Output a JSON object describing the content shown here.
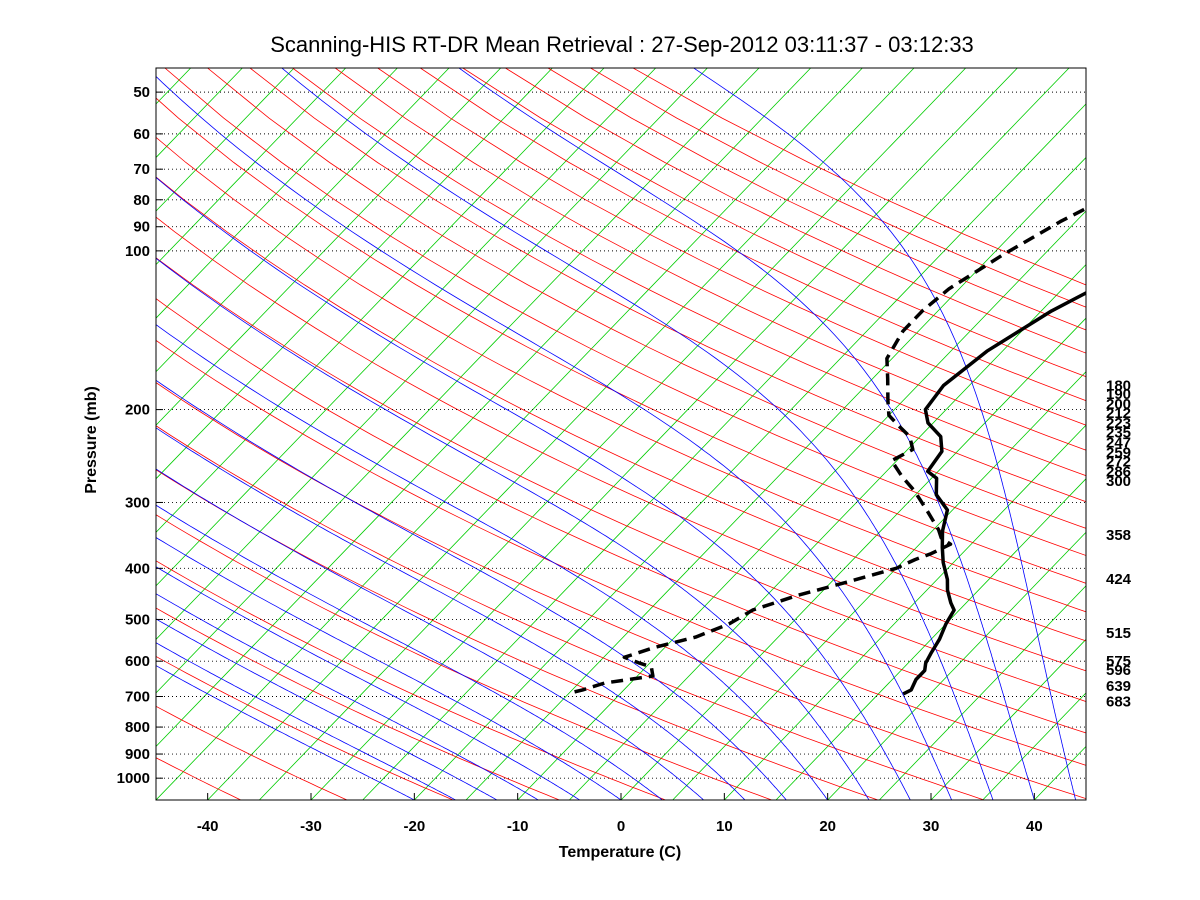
{
  "chart_data": {
    "type": "line",
    "chart_kind": "skew-T log-p thermodynamic diagram",
    "title": "Scanning-HIS RT-DR Mean Retrieval : 27-Sep-2012 03:11:37 - 03:12:33",
    "xlabel": "Temperature (C)",
    "ylabel": "Pressure (mb)",
    "xlim": [
      -45,
      45
    ],
    "ylim": [
      1100,
      45
    ],
    "y_scale": "log",
    "x_ticks": [
      -40,
      -30,
      -20,
      -10,
      0,
      10,
      20,
      30,
      40
    ],
    "x_tick_labels": [
      "-40",
      "-30",
      "-20",
      "-10",
      "0",
      "10",
      "20",
      "30",
      "40"
    ],
    "y_ticks": [
      50,
      60,
      70,
      80,
      90,
      100,
      200,
      300,
      400,
      500,
      600,
      700,
      800,
      900,
      1000
    ],
    "y_tick_labels": [
      "50",
      "60",
      "70",
      "80",
      "90",
      "100",
      "200",
      "300",
      "400",
      "500",
      "600",
      "700",
      "800",
      "900",
      "1000"
    ],
    "gridlines": "dotted horizontal at labeled pressures",
    "background_lines": {
      "isotherms_skewed": {
        "color": "#00cc00",
        "every_degC": 5
      },
      "dry_adiabats": {
        "color": "#ff0000"
      },
      "moist_adiabats": {
        "color": "#0000ff"
      }
    },
    "height_labels": {
      "placement": "right margin",
      "items": [
        {
          "label": "180",
          "pressure": 180
        },
        {
          "label": "190",
          "pressure": 187
        },
        {
          "label": "200",
          "pressure": 195
        },
        {
          "label": "212",
          "pressure": 203
        },
        {
          "label": "223",
          "pressure": 212
        },
        {
          "label": "235",
          "pressure": 221
        },
        {
          "label": "247",
          "pressure": 231
        },
        {
          "label": "259",
          "pressure": 241
        },
        {
          "label": "272",
          "pressure": 251
        },
        {
          "label": "286",
          "pressure": 262
        },
        {
          "label": "300",
          "pressure": 273
        },
        {
          "label": "358",
          "pressure": 346
        },
        {
          "label": "424",
          "pressure": 419
        },
        {
          "label": "515",
          "pressure": 530
        },
        {
          "label": "575",
          "pressure": 600
        },
        {
          "label": "596",
          "pressure": 623
        },
        {
          "label": "639",
          "pressure": 668
        },
        {
          "label": "683",
          "pressure": 715
        }
      ]
    },
    "series": [
      {
        "name": "Temperature",
        "style": "solid",
        "color": "#000000",
        "points": [
          {
            "t": 30.0,
            "p": 45
          },
          {
            "t": 24.5,
            "p": 52
          },
          {
            "t": 19.5,
            "p": 60
          },
          {
            "t": 14.0,
            "p": 70
          },
          {
            "t": 9.0,
            "p": 80
          },
          {
            "t": 4.0,
            "p": 93
          },
          {
            "t": -0.5,
            "p": 110
          },
          {
            "t": -4.0,
            "p": 130
          },
          {
            "t": -6.5,
            "p": 155
          },
          {
            "t": -7.5,
            "p": 180
          },
          {
            "t": -7.0,
            "p": 200
          },
          {
            "t": -5.5,
            "p": 212
          },
          {
            "t": -3.0,
            "p": 225
          },
          {
            "t": -1.5,
            "p": 240
          },
          {
            "t": -1.0,
            "p": 262
          },
          {
            "t": 0.5,
            "p": 270
          },
          {
            "t": 2.0,
            "p": 290
          },
          {
            "t": 4.5,
            "p": 310
          },
          {
            "t": 6.0,
            "p": 340
          },
          {
            "t": 7.5,
            "p": 365
          },
          {
            "t": 9.0,
            "p": 390
          },
          {
            "t": 11.0,
            "p": 420
          },
          {
            "t": 12.0,
            "p": 440
          },
          {
            "t": 13.5,
            "p": 465
          },
          {
            "t": 14.5,
            "p": 480
          },
          {
            "t": 15.0,
            "p": 510
          },
          {
            "t": 15.8,
            "p": 545
          },
          {
            "t": 16.3,
            "p": 580
          },
          {
            "t": 16.7,
            "p": 605
          },
          {
            "t": 17.3,
            "p": 625
          },
          {
            "t": 17.3,
            "p": 650
          },
          {
            "t": 17.8,
            "p": 680
          },
          {
            "t": 17.4,
            "p": 692
          }
        ]
      },
      {
        "name": "Dewpoint",
        "style": "dashed",
        "color": "#000000",
        "points": [
          {
            "t": 2.5,
            "p": 45
          },
          {
            "t": -0.5,
            "p": 52
          },
          {
            "t": -4.0,
            "p": 62
          },
          {
            "t": -8.0,
            "p": 75
          },
          {
            "t": -11.5,
            "p": 88
          },
          {
            "t": -14.0,
            "p": 102
          },
          {
            "t": -16.0,
            "p": 118
          },
          {
            "t": -16.5,
            "p": 130
          },
          {
            "t": -16.5,
            "p": 142
          },
          {
            "t": -15.5,
            "p": 160
          },
          {
            "t": -13.5,
            "p": 175
          },
          {
            "t": -11.5,
            "p": 192
          },
          {
            "t": -10.0,
            "p": 205
          },
          {
            "t": -8.0,
            "p": 215
          },
          {
            "t": -6.0,
            "p": 225
          },
          {
            "t": -4.5,
            "p": 238
          },
          {
            "t": -5.5,
            "p": 250
          },
          {
            "t": -3.0,
            "p": 268
          },
          {
            "t": -0.5,
            "p": 285
          },
          {
            "t": 2.5,
            "p": 310
          },
          {
            "t": 5.5,
            "p": 338
          },
          {
            "t": 6.5,
            "p": 350
          },
          {
            "t": 8.0,
            "p": 360
          },
          {
            "t": 7.0,
            "p": 375
          },
          {
            "t": 6.0,
            "p": 385
          },
          {
            "t": 5.0,
            "p": 400
          },
          {
            "t": 1.5,
            "p": 425
          },
          {
            "t": -2.0,
            "p": 450
          },
          {
            "t": -5.0,
            "p": 480
          },
          {
            "t": -6.0,
            "p": 510
          },
          {
            "t": -8.0,
            "p": 540
          },
          {
            "t": -11.0,
            "p": 565
          },
          {
            "t": -13.0,
            "p": 590
          },
          {
            "t": -11.0,
            "p": 605
          },
          {
            "t": -9.5,
            "p": 615
          },
          {
            "t": -8.5,
            "p": 640
          },
          {
            "t": -12.5,
            "p": 660
          },
          {
            "t": -14.0,
            "p": 680
          },
          {
            "t": -15.0,
            "p": 690
          }
        ]
      }
    ]
  }
}
